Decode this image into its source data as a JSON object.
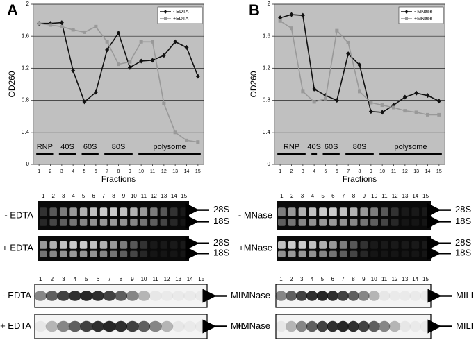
{
  "chart_data": [
    {
      "type": "line",
      "panel_label": "A",
      "xlabel": "Fractions",
      "ylabel": "OD260",
      "x": [
        1,
        2,
        3,
        4,
        5,
        6,
        7,
        8,
        9,
        10,
        11,
        12,
        13,
        14,
        15
      ],
      "xlim": [
        0.5,
        15.5
      ],
      "xticks": [
        1,
        2,
        3,
        4,
        5,
        6,
        7,
        8,
        9,
        10,
        11,
        12,
        13,
        14,
        15
      ],
      "ylim": [
        0,
        2
      ],
      "yticks": [
        0,
        0.4,
        0.8,
        1.2,
        1.6,
        2
      ],
      "grid": true,
      "legend": "upper right",
      "series": [
        {
          "name": "- EDTA",
          "color": "#111111",
          "marker": "diamond",
          "values": [
            1.76,
            1.76,
            1.77,
            1.17,
            0.78,
            0.9,
            1.43,
            1.64,
            1.21,
            1.29,
            1.3,
            1.36,
            1.53,
            1.46,
            1.1
          ]
        },
        {
          "name": "+EDTA",
          "color": "#999999",
          "marker": "square",
          "values": [
            1.76,
            1.74,
            1.72,
            1.68,
            1.65,
            1.72,
            1.53,
            1.25,
            1.28,
            1.53,
            1.53,
            0.76,
            0.4,
            0.3,
            0.28
          ]
        }
      ],
      "annotations": [
        {
          "text": "RNP",
          "fractions": [
            1,
            2
          ]
        },
        {
          "text": "40S",
          "fractions": [
            3,
            4
          ]
        },
        {
          "text": "60S",
          "fractions": [
            5,
            6
          ]
        },
        {
          "text": "80S",
          "fractions": [
            7,
            9
          ]
        },
        {
          "text": "polysome",
          "fractions": [
            10,
            15
          ]
        }
      ]
    },
    {
      "type": "line",
      "panel_label": "B",
      "xlabel": "Fractions",
      "ylabel": "OD260",
      "x": [
        1,
        2,
        3,
        4,
        5,
        6,
        7,
        8,
        9,
        10,
        11,
        12,
        13,
        14,
        15
      ],
      "xlim": [
        0.5,
        15.5
      ],
      "xticks": [
        1,
        2,
        3,
        4,
        5,
        6,
        7,
        8,
        9,
        10,
        11,
        12,
        13,
        14,
        15
      ],
      "ylim": [
        0,
        2
      ],
      "yticks": [
        0,
        0.4,
        0.8,
        1.2,
        1.6,
        2
      ],
      "grid": true,
      "legend": "upper right",
      "series": [
        {
          "name": "- MNase",
          "color": "#111111",
          "marker": "diamond",
          "values": [
            1.83,
            1.87,
            1.86,
            0.94,
            0.86,
            0.8,
            1.38,
            1.24,
            0.66,
            0.65,
            0.74,
            0.84,
            0.89,
            0.86,
            0.79
          ]
        },
        {
          "name": "+MNase",
          "color": "#999999",
          "marker": "square",
          "values": [
            1.79,
            1.7,
            0.91,
            0.78,
            0.82,
            1.67,
            1.52,
            0.91,
            0.77,
            0.74,
            0.71,
            0.67,
            0.65,
            0.62,
            0.62
          ]
        }
      ],
      "annotations": [
        {
          "text": "RNP",
          "fractions": [
            1,
            3
          ]
        },
        {
          "text": "40S",
          "fractions": [
            4,
            4
          ]
        },
        {
          "text": "60S",
          "fractions": [
            5,
            6
          ]
        },
        {
          "text": "80S",
          "fractions": [
            7,
            9
          ]
        },
        {
          "text": "polysome",
          "fractions": [
            10,
            15
          ]
        }
      ]
    }
  ],
  "gels": [
    {
      "lanes": [
        1,
        2,
        3,
        4,
        5,
        6,
        7,
        8,
        9,
        10,
        11,
        12,
        13,
        14,
        15
      ],
      "rrna": [
        {
          "label": "- EDTA",
          "bands": [
            "28S",
            "18S"
          ]
        },
        {
          "label": "+ EDTA",
          "bands": [
            "28S",
            "18S"
          ]
        }
      ],
      "western": [
        {
          "label": "- EDTA",
          "protein": "MILI"
        },
        {
          "label": "+ EDTA",
          "protein": "MILI"
        }
      ]
    },
    {
      "lanes": [
        1,
        2,
        3,
        4,
        5,
        6,
        7,
        8,
        9,
        10,
        11,
        12,
        13,
        14,
        15
      ],
      "rrna": [
        {
          "label": "- MNase",
          "bands": [
            "28S",
            "18S"
          ]
        },
        {
          "label": "+MNase",
          "bands": [
            "28S",
            "18S"
          ]
        }
      ],
      "western": [
        {
          "label": "- MNase",
          "protein": "MILI"
        },
        {
          "label": "+MNase",
          "protein": "MILI"
        }
      ]
    }
  ]
}
